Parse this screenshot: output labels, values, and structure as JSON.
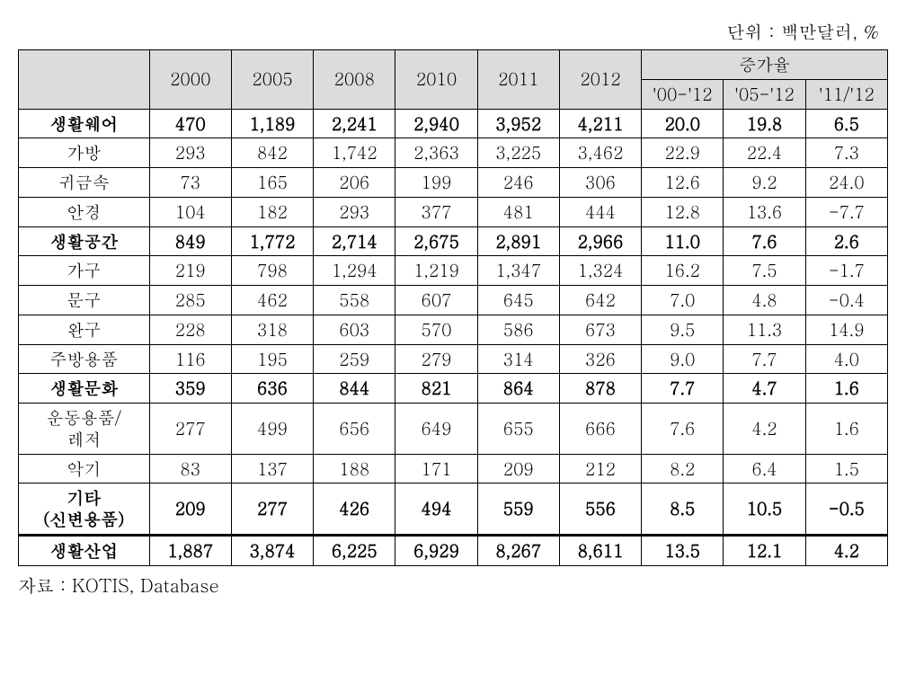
{
  "unit_label": "단위 : 백만달러, %",
  "source_label": "자료 : KOTIS, Database",
  "header": {
    "years": [
      "2000",
      "2005",
      "2008",
      "2010",
      "2011",
      "2012"
    ],
    "rate_group": "증가율",
    "rate_cols": [
      "'00-'12",
      "'05-'12",
      "'11/'12"
    ]
  },
  "rows": [
    {
      "name": "생활웨어",
      "bold": true,
      "y": [
        "470",
        "1,189",
        "2,241",
        "2,940",
        "3,952",
        "4,211"
      ],
      "r": [
        "20.0",
        "19.8",
        "6.5"
      ]
    },
    {
      "name": "가방",
      "bold": false,
      "y": [
        "293",
        "842",
        "1,742",
        "2,363",
        "3,225",
        "3,462"
      ],
      "r": [
        "22.9",
        "22.4",
        "7.3"
      ]
    },
    {
      "name": "귀금속",
      "bold": false,
      "y": [
        "73",
        "165",
        "206",
        "199",
        "246",
        "306"
      ],
      "r": [
        "12.6",
        "9.2",
        "24.0"
      ]
    },
    {
      "name": "안경",
      "bold": false,
      "y": [
        "104",
        "182",
        "293",
        "377",
        "481",
        "444"
      ],
      "r": [
        "12.8",
        "13.6",
        "-7.7"
      ]
    },
    {
      "name": "생활공간",
      "bold": true,
      "y": [
        "849",
        "1,772",
        "2,714",
        "2,675",
        "2,891",
        "2,966"
      ],
      "r": [
        "11.0",
        "7.6",
        "2.6"
      ]
    },
    {
      "name": "가구",
      "bold": false,
      "y": [
        "219",
        "798",
        "1,294",
        "1,219",
        "1,347",
        "1,324"
      ],
      "r": [
        "16.2",
        "7.5",
        "-1.7"
      ]
    },
    {
      "name": "문구",
      "bold": false,
      "y": [
        "285",
        "462",
        "558",
        "607",
        "645",
        "642"
      ],
      "r": [
        "7.0",
        "4.8",
        "-0.4"
      ]
    },
    {
      "name": "완구",
      "bold": false,
      "y": [
        "228",
        "318",
        "603",
        "570",
        "586",
        "673"
      ],
      "r": [
        "9.5",
        "11.3",
        "14.9"
      ]
    },
    {
      "name": "주방용품",
      "bold": false,
      "y": [
        "116",
        "195",
        "259",
        "279",
        "314",
        "326"
      ],
      "r": [
        "9.0",
        "7.7",
        "4.0"
      ]
    },
    {
      "name": "생활문화",
      "bold": true,
      "y": [
        "359",
        "636",
        "844",
        "821",
        "864",
        "878"
      ],
      "r": [
        "7.7",
        "4.7",
        "1.6"
      ]
    },
    {
      "name": "운동용품/\n레저",
      "bold": false,
      "y": [
        "277",
        "499",
        "656",
        "649",
        "655",
        "666"
      ],
      "r": [
        "7.6",
        "4.2",
        "1.6"
      ]
    },
    {
      "name": "악기",
      "bold": false,
      "y": [
        "83",
        "137",
        "188",
        "171",
        "209",
        "212"
      ],
      "r": [
        "8.2",
        "6.4",
        "1.5"
      ]
    },
    {
      "name": "기타\n(신변용품)",
      "bold": true,
      "y": [
        "209",
        "277",
        "426",
        "494",
        "559",
        "556"
      ],
      "r": [
        "8.5",
        "10.5",
        "-0.5"
      ]
    }
  ],
  "total": {
    "name": "생활산업",
    "y": [
      "1,887",
      "3,874",
      "6,225",
      "6,929",
      "8,267",
      "8,611"
    ],
    "r": [
      "13.5",
      "12.1",
      "4.2"
    ]
  }
}
